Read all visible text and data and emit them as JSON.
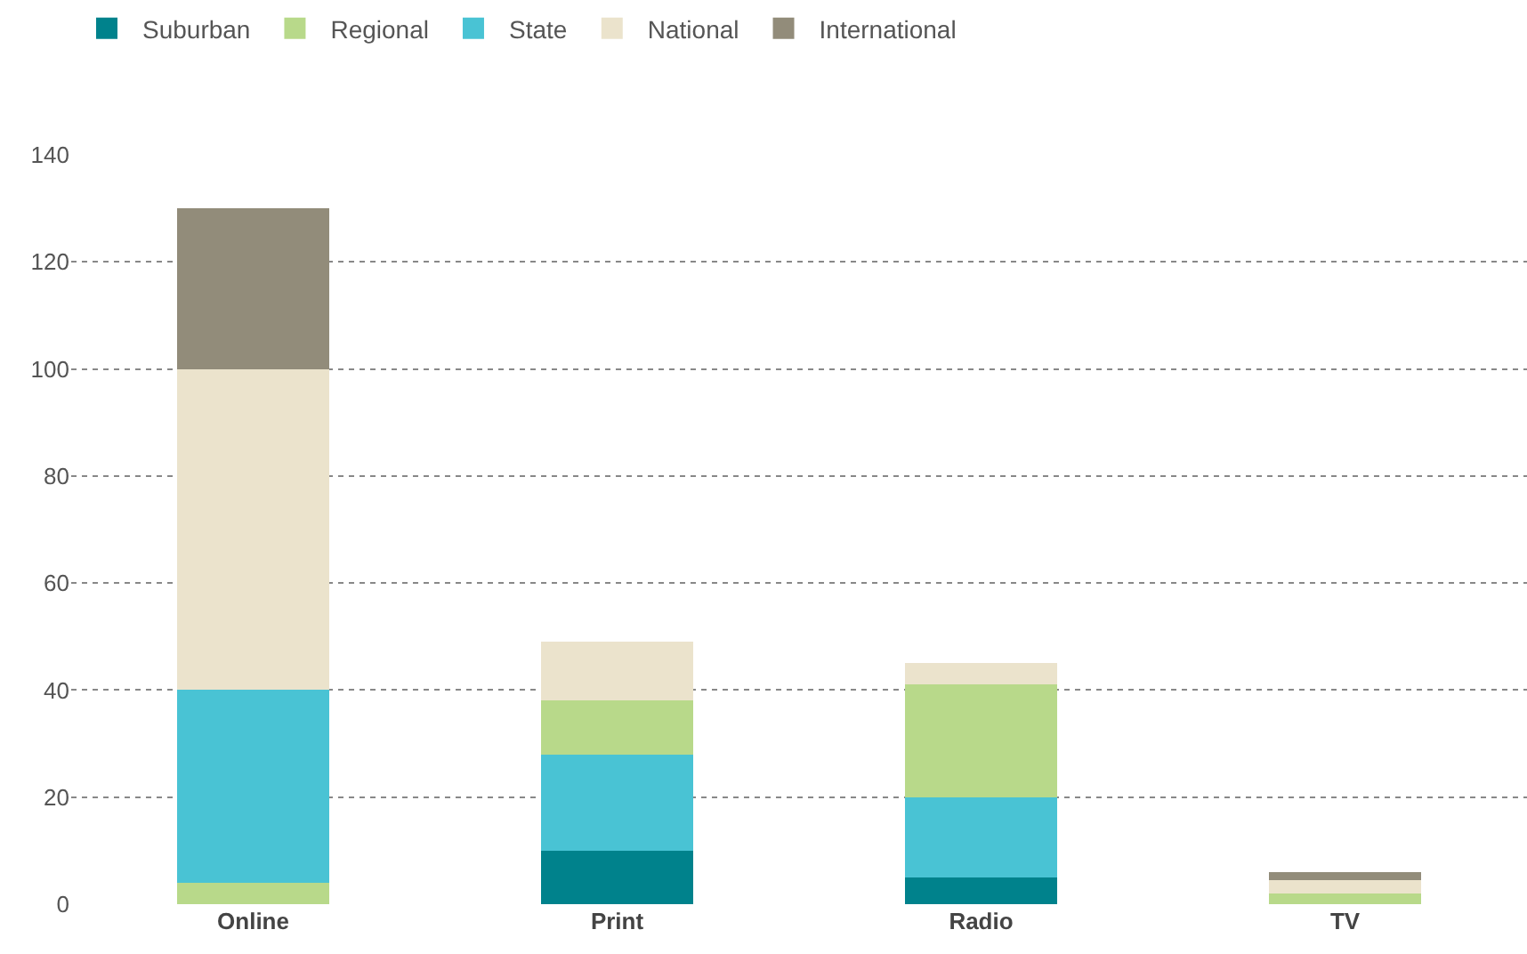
{
  "chart_data": {
    "type": "bar",
    "stacked": true,
    "categories": [
      "Online",
      "Print",
      "Radio",
      "TV"
    ],
    "series": [
      {
        "name": "Suburban",
        "color": "#00828c",
        "values": [
          0,
          10,
          5,
          0
        ]
      },
      {
        "name": "Regional",
        "color": "#b8d98a",
        "values": [
          4,
          null,
          null,
          2
        ]
      },
      {
        "name": "State",
        "color": "#49c3d4",
        "values": [
          36,
          18,
          15,
          0
        ]
      },
      {
        "color": "#b8d98a",
        "values": [
          null,
          10,
          21,
          null
        ]
      },
      {
        "name": "National",
        "color": "#ebe3cc",
        "values": [
          60,
          11,
          4,
          2.5
        ]
      },
      {
        "name": "International",
        "color": "#928c7a",
        "values": [
          30,
          0,
          0,
          1.5
        ]
      }
    ],
    "ylim": [
      0,
      140
    ],
    "yticks": [
      0,
      20,
      40,
      60,
      80,
      100,
      120,
      140
    ],
    "grid": "y",
    "legend": "top left"
  }
}
